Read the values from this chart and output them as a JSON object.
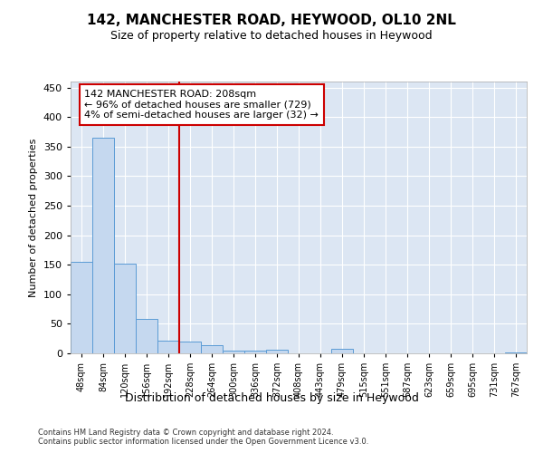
{
  "title1": "142, MANCHESTER ROAD, HEYWOOD, OL10 2NL",
  "title2": "Size of property relative to detached houses in Heywood",
  "xlabel": "Distribution of detached houses by size in Heywood",
  "ylabel": "Number of detached properties",
  "bin_labels": [
    "48sqm",
    "84sqm",
    "120sqm",
    "156sqm",
    "192sqm",
    "228sqm",
    "264sqm",
    "300sqm",
    "336sqm",
    "372sqm",
    "408sqm",
    "443sqm",
    "479sqm",
    "515sqm",
    "551sqm",
    "587sqm",
    "623sqm",
    "659sqm",
    "695sqm",
    "731sqm",
    "767sqm"
  ],
  "bar_values": [
    155,
    365,
    152,
    58,
    21,
    20,
    14,
    5,
    5,
    6,
    0,
    0,
    7,
    0,
    0,
    0,
    0,
    0,
    0,
    0,
    2
  ],
  "bar_color": "#c5d8ef",
  "bar_edge_color": "#5b9bd5",
  "vline_color": "#cc0000",
  "annotation_text": "142 MANCHESTER ROAD: 208sqm\n← 96% of detached houses are smaller (729)\n4% of semi-detached houses are larger (32) →",
  "annotation_box_color": "#ffffff",
  "annotation_box_edge": "#cc0000",
  "ylim": [
    0,
    460
  ],
  "yticks": [
    0,
    50,
    100,
    150,
    200,
    250,
    300,
    350,
    400,
    450
  ],
  "footer1": "Contains HM Land Registry data © Crown copyright and database right 2024.",
  "footer2": "Contains public sector information licensed under the Open Government Licence v3.0.",
  "fig_bg_color": "#ffffff",
  "plot_bg_color": "#dce6f3"
}
